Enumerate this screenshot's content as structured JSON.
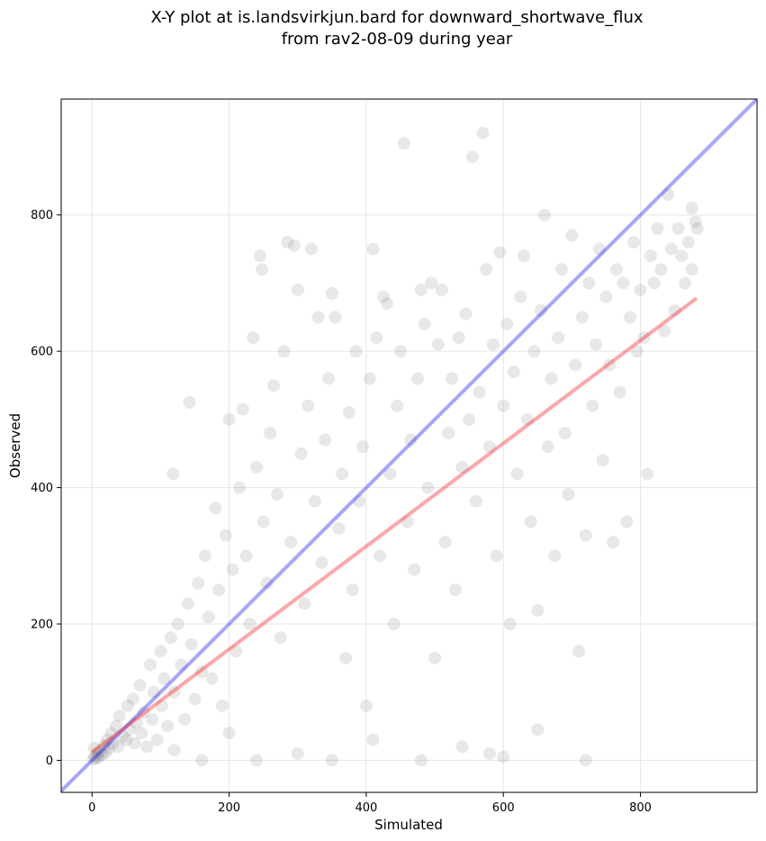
{
  "chart_data": {
    "type": "scatter",
    "title_line1": "X-Y plot at is.landsvirkjun.bard for downward_shortwave_flux",
    "title_line2": "from rav2-08-09 during year",
    "xlabel": "Simulated",
    "ylabel": "Observed",
    "xlim": [
      -45,
      970
    ],
    "ylim": [
      -47,
      970
    ],
    "xticks": [
      0,
      200,
      400,
      600,
      800
    ],
    "yticks": [
      0,
      200,
      400,
      600,
      800
    ],
    "grid": true,
    "legend": "none",
    "point_color": "#808080",
    "point_alpha": 0.18,
    "one_to_one_line": {
      "color": "#0000ff",
      "alpha": 0.35,
      "x": [
        -45,
        970
      ],
      "y": [
        -45,
        970
      ]
    },
    "fit_line": {
      "color": "#ff0000",
      "alpha": 0.35,
      "x": [
        0,
        882
      ],
      "y": [
        12,
        678
      ]
    },
    "points": [
      [
        2,
        2
      ],
      [
        4,
        6
      ],
      [
        6,
        3
      ],
      [
        8,
        10
      ],
      [
        10,
        5
      ],
      [
        12,
        14
      ],
      [
        3,
        18
      ],
      [
        15,
        8
      ],
      [
        18,
        22
      ],
      [
        20,
        12
      ],
      [
        22,
        30
      ],
      [
        25,
        18
      ],
      [
        28,
        40
      ],
      [
        30,
        25
      ],
      [
        35,
        50
      ],
      [
        38,
        20
      ],
      [
        40,
        65
      ],
      [
        45,
        35
      ],
      [
        50,
        30
      ],
      [
        52,
        80
      ],
      [
        55,
        45
      ],
      [
        60,
        90
      ],
      [
        62,
        25
      ],
      [
        65,
        55
      ],
      [
        70,
        110
      ],
      [
        72,
        40
      ],
      [
        75,
        70
      ],
      [
        80,
        20
      ],
      [
        85,
        140
      ],
      [
        88,
        60
      ],
      [
        90,
        100
      ],
      [
        95,
        30
      ],
      [
        100,
        160
      ],
      [
        102,
        80
      ],
      [
        105,
        120
      ],
      [
        110,
        50
      ],
      [
        115,
        180
      ],
      [
        118,
        420
      ],
      [
        120,
        100
      ],
      [
        125,
        200
      ],
      [
        130,
        140
      ],
      [
        135,
        60
      ],
      [
        140,
        230
      ],
      [
        142,
        525
      ],
      [
        145,
        170
      ],
      [
        150,
        90
      ],
      [
        155,
        260
      ],
      [
        160,
        130
      ],
      [
        165,
        300
      ],
      [
        170,
        210
      ],
      [
        175,
        120
      ],
      [
        180,
        370
      ],
      [
        185,
        250
      ],
      [
        190,
        80
      ],
      [
        195,
        330
      ],
      [
        200,
        500
      ],
      [
        205,
        280
      ],
      [
        210,
        160
      ],
      [
        215,
        400
      ],
      [
        220,
        515
      ],
      [
        225,
        300
      ],
      [
        230,
        200
      ],
      [
        235,
        620
      ],
      [
        240,
        430
      ],
      [
        245,
        740
      ],
      [
        248,
        720
      ],
      [
        250,
        350
      ],
      [
        255,
        260
      ],
      [
        260,
        480
      ],
      [
        265,
        550
      ],
      [
        270,
        390
      ],
      [
        275,
        180
      ],
      [
        280,
        600
      ],
      [
        285,
        760
      ],
      [
        290,
        320
      ],
      [
        295,
        755
      ],
      [
        300,
        690
      ],
      [
        305,
        450
      ],
      [
        310,
        230
      ],
      [
        315,
        520
      ],
      [
        320,
        750
      ],
      [
        325,
        380
      ],
      [
        330,
        650
      ],
      [
        335,
        290
      ],
      [
        340,
        470
      ],
      [
        345,
        560
      ],
      [
        350,
        685
      ],
      [
        355,
        650
      ],
      [
        360,
        340
      ],
      [
        365,
        420
      ],
      [
        370,
        150
      ],
      [
        375,
        510
      ],
      [
        380,
        250
      ],
      [
        385,
        600
      ],
      [
        390,
        380
      ],
      [
        395,
        460
      ],
      [
        400,
        80
      ],
      [
        405,
        560
      ],
      [
        410,
        750
      ],
      [
        415,
        620
      ],
      [
        420,
        300
      ],
      [
        425,
        680
      ],
      [
        430,
        670
      ],
      [
        435,
        420
      ],
      [
        440,
        200
      ],
      [
        445,
        520
      ],
      [
        450,
        600
      ],
      [
        455,
        905
      ],
      [
        460,
        350
      ],
      [
        465,
        470
      ],
      [
        470,
        280
      ],
      [
        475,
        560
      ],
      [
        480,
        690
      ],
      [
        485,
        640
      ],
      [
        490,
        400
      ],
      [
        495,
        700
      ],
      [
        500,
        150
      ],
      [
        505,
        610
      ],
      [
        510,
        690
      ],
      [
        515,
        320
      ],
      [
        520,
        480
      ],
      [
        525,
        560
      ],
      [
        530,
        250
      ],
      [
        535,
        620
      ],
      [
        540,
        430
      ],
      [
        545,
        655
      ],
      [
        550,
        500
      ],
      [
        555,
        885
      ],
      [
        560,
        380
      ],
      [
        565,
        540
      ],
      [
        570,
        920
      ],
      [
        575,
        720
      ],
      [
        580,
        460
      ],
      [
        585,
        610
      ],
      [
        590,
        300
      ],
      [
        595,
        745
      ],
      [
        600,
        520
      ],
      [
        605,
        640
      ],
      [
        610,
        200
      ],
      [
        615,
        570
      ],
      [
        620,
        420
      ],
      [
        625,
        680
      ],
      [
        630,
        740
      ],
      [
        635,
        500
      ],
      [
        640,
        350
      ],
      [
        645,
        600
      ],
      [
        650,
        220
      ],
      [
        655,
        660
      ],
      [
        660,
        800
      ],
      [
        665,
        460
      ],
      [
        670,
        560
      ],
      [
        675,
        300
      ],
      [
        680,
        620
      ],
      [
        685,
        720
      ],
      [
        690,
        480
      ],
      [
        695,
        390
      ],
      [
        700,
        770
      ],
      [
        705,
        580
      ],
      [
        710,
        160
      ],
      [
        715,
        650
      ],
      [
        720,
        330
      ],
      [
        725,
        700
      ],
      [
        730,
        520
      ],
      [
        735,
        610
      ],
      [
        740,
        750
      ],
      [
        745,
        440
      ],
      [
        750,
        680
      ],
      [
        755,
        580
      ],
      [
        760,
        320
      ],
      [
        765,
        720
      ],
      [
        770,
        540
      ],
      [
        775,
        700
      ],
      [
        780,
        350
      ],
      [
        785,
        650
      ],
      [
        790,
        760
      ],
      [
        795,
        600
      ],
      [
        800,
        690
      ],
      [
        805,
        620
      ],
      [
        810,
        420
      ],
      [
        815,
        740
      ],
      [
        820,
        700
      ],
      [
        825,
        780
      ],
      [
        830,
        720
      ],
      [
        835,
        630
      ],
      [
        840,
        830
      ],
      [
        845,
        750
      ],
      [
        850,
        660
      ],
      [
        855,
        780
      ],
      [
        860,
        740
      ],
      [
        865,
        700
      ],
      [
        870,
        760
      ],
      [
        875,
        720
      ],
      [
        880,
        790
      ],
      [
        883,
        780
      ],
      [
        875,
        810
      ],
      [
        480,
        0
      ],
      [
        540,
        20
      ],
      [
        600,
        5
      ],
      [
        720,
        0
      ],
      [
        650,
        45
      ],
      [
        580,
        10
      ],
      [
        410,
        30
      ],
      [
        350,
        0
      ],
      [
        300,
        10
      ],
      [
        240,
        0
      ],
      [
        200,
        40
      ],
      [
        160,
        0
      ],
      [
        120,
        15
      ]
    ]
  }
}
